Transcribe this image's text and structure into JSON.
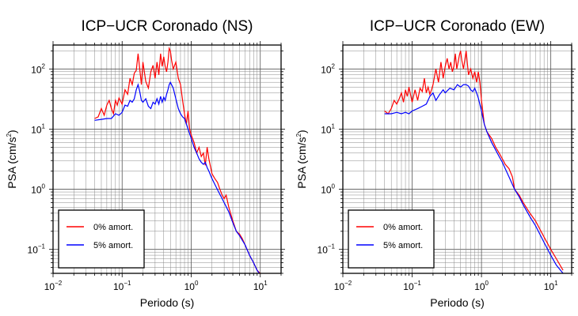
{
  "chart_data": [
    {
      "type": "line",
      "title": "ICP−UCR Coronado (NS)",
      "xlabel": "Periodo (s)",
      "ylabel": "PSA (cm/s",
      "ylabel_sup": "2",
      "ylabel_close": ")",
      "xscale": "log",
      "yscale": "log",
      "xlim": [
        0.01,
        20
      ],
      "ylim": [
        0.04,
        250
      ],
      "grid": true,
      "legend_position": "bottom-left",
      "x_ticks": [
        {
          "value": 0.01,
          "base": "10",
          "exp": "−2"
        },
        {
          "value": 0.1,
          "base": "10",
          "exp": "−1"
        },
        {
          "value": 1,
          "base": "10",
          "exp": "0"
        },
        {
          "value": 10,
          "base": "10",
          "exp": "1"
        }
      ],
      "y_ticks": [
        {
          "value": 0.1,
          "base": "10",
          "exp": "−1"
        },
        {
          "value": 1,
          "base": "10",
          "exp": "0"
        },
        {
          "value": 10,
          "base": "10",
          "exp": "1"
        },
        {
          "value": 100,
          "base": "10",
          "exp": "2"
        }
      ],
      "series": [
        {
          "name": "0% amort.",
          "color": "#ff0000",
          "x": [
            0.04,
            0.045,
            0.05,
            0.055,
            0.06,
            0.065,
            0.07,
            0.075,
            0.08,
            0.085,
            0.09,
            0.1,
            0.11,
            0.12,
            0.13,
            0.14,
            0.15,
            0.16,
            0.17,
            0.18,
            0.19,
            0.2,
            0.22,
            0.24,
            0.26,
            0.28,
            0.3,
            0.32,
            0.34,
            0.36,
            0.38,
            0.4,
            0.42,
            0.44,
            0.46,
            0.48,
            0.5,
            0.52,
            0.55,
            0.6,
            0.65,
            0.7,
            0.75,
            0.8,
            0.85,
            0.9,
            0.95,
            1.0,
            1.1,
            1.2,
            1.3,
            1.4,
            1.5,
            1.6,
            1.7,
            1.8,
            2.0,
            2.2,
            2.4,
            2.6,
            2.8,
            3.0,
            3.2,
            3.5,
            4.0,
            4.5,
            5.0,
            5.5,
            6.0,
            7.0,
            8.0,
            9.0,
            10.0
          ],
          "y": [
            15,
            16,
            22,
            17,
            25,
            30,
            22,
            18,
            30,
            25,
            33,
            26,
            45,
            38,
            70,
            55,
            85,
            95,
            180,
            100,
            55,
            130,
            62,
            48,
            90,
            115,
            70,
            130,
            80,
            180,
            110,
            160,
            110,
            90,
            130,
            220,
            200,
            140,
            100,
            130,
            70,
            55,
            30,
            18,
            12,
            20,
            10,
            8,
            6,
            4,
            5,
            3.5,
            4,
            2.5,
            5,
            3.2,
            1.8,
            1.5,
            1.3,
            1.0,
            0.8,
            0.7,
            0.8,
            0.5,
            0.3,
            0.2,
            0.18,
            0.15,
            0.12,
            0.08,
            0.06,
            0.045,
            0.04
          ]
        },
        {
          "name": "5% amort.",
          "color": "#0000ff",
          "x": [
            0.04,
            0.05,
            0.06,
            0.07,
            0.08,
            0.09,
            0.1,
            0.11,
            0.12,
            0.13,
            0.14,
            0.15,
            0.16,
            0.17,
            0.18,
            0.19,
            0.2,
            0.22,
            0.24,
            0.26,
            0.28,
            0.3,
            0.32,
            0.34,
            0.36,
            0.38,
            0.4,
            0.42,
            0.44,
            0.46,
            0.48,
            0.5,
            0.55,
            0.6,
            0.65,
            0.7,
            0.75,
            0.8,
            0.9,
            1.0,
            1.1,
            1.2,
            1.3,
            1.4,
            1.5,
            1.6,
            1.7,
            1.8,
            2.0,
            2.2,
            2.5,
            2.8,
            3.0,
            3.5,
            4.0,
            4.5,
            5.0,
            6.0,
            7.0,
            8.0,
            9.0,
            10.0
          ],
          "y": [
            14,
            14.5,
            15,
            15,
            18,
            17,
            19,
            25,
            24,
            30,
            28,
            32,
            45,
            55,
            42,
            30,
            28,
            32,
            24,
            22,
            28,
            26,
            32,
            26,
            35,
            28,
            34,
            30,
            38,
            45,
            55,
            60,
            48,
            32,
            22,
            18,
            16,
            15,
            10,
            7,
            5,
            4,
            3.2,
            2.8,
            2.6,
            2.8,
            2.3,
            2.0,
            1.5,
            1.2,
            0.9,
            0.7,
            0.6,
            0.42,
            0.28,
            0.2,
            0.17,
            0.12,
            0.08,
            0.06,
            0.045,
            0.038
          ]
        }
      ]
    },
    {
      "type": "line",
      "title": "ICP−UCR Coronado (EW)",
      "xlabel": "Periodo (s)",
      "ylabel": "PSA (cm/s",
      "ylabel_sup": "2",
      "ylabel_close": ")",
      "xscale": "log",
      "yscale": "log",
      "xlim": [
        0.01,
        20
      ],
      "ylim": [
        0.04,
        250
      ],
      "grid": true,
      "legend_position": "bottom-left",
      "x_ticks": [
        {
          "value": 0.01,
          "base": "10",
          "exp": "−2"
        },
        {
          "value": 0.1,
          "base": "10",
          "exp": "−1"
        },
        {
          "value": 1,
          "base": "10",
          "exp": "0"
        },
        {
          "value": 10,
          "base": "10",
          "exp": "1"
        }
      ],
      "y_ticks": [
        {
          "value": 0.1,
          "base": "10",
          "exp": "−1"
        },
        {
          "value": 1,
          "base": "10",
          "exp": "0"
        },
        {
          "value": 10,
          "base": "10",
          "exp": "1"
        },
        {
          "value": 100,
          "base": "10",
          "exp": "2"
        }
      ],
      "series": [
        {
          "name": "0% amort.",
          "color": "#ff0000",
          "x": [
            0.04,
            0.045,
            0.05,
            0.055,
            0.06,
            0.065,
            0.07,
            0.075,
            0.08,
            0.085,
            0.09,
            0.1,
            0.11,
            0.12,
            0.13,
            0.14,
            0.15,
            0.16,
            0.17,
            0.18,
            0.19,
            0.2,
            0.22,
            0.24,
            0.26,
            0.28,
            0.3,
            0.32,
            0.34,
            0.36,
            0.38,
            0.4,
            0.42,
            0.44,
            0.46,
            0.48,
            0.5,
            0.52,
            0.55,
            0.6,
            0.65,
            0.7,
            0.75,
            0.8,
            0.85,
            0.9,
            0.95,
            1.0,
            1.1,
            1.2,
            1.4,
            1.6,
            1.8,
            2.0,
            2.2,
            2.5,
            2.8,
            3.0,
            3.5,
            4.0,
            5.0,
            6.0,
            8.0,
            10.0,
            12.0,
            15.0
          ],
          "y": [
            20,
            18,
            22,
            30,
            26,
            32,
            40,
            28,
            45,
            35,
            50,
            28,
            45,
            30,
            48,
            42,
            70,
            40,
            50,
            38,
            45,
            55,
            100,
            60,
            130,
            70,
            110,
            150,
            100,
            130,
            90,
            110,
            180,
            100,
            130,
            170,
            200,
            140,
            100,
            200,
            80,
            100,
            70,
            90,
            60,
            90,
            60,
            30,
            12,
            9,
            7,
            5,
            4,
            3.2,
            2.6,
            2.2,
            1.6,
            1.0,
            0.8,
            0.6,
            0.4,
            0.3,
            0.16,
            0.1,
            0.07,
            0.045
          ]
        },
        {
          "name": "5% amort.",
          "color": "#0000ff",
          "x": [
            0.04,
            0.05,
            0.06,
            0.07,
            0.08,
            0.09,
            0.1,
            0.12,
            0.14,
            0.16,
            0.18,
            0.2,
            0.22,
            0.25,
            0.28,
            0.3,
            0.35,
            0.4,
            0.45,
            0.5,
            0.55,
            0.6,
            0.65,
            0.7,
            0.75,
            0.8,
            0.85,
            0.9,
            1.0,
            1.1,
            1.2,
            1.4,
            1.6,
            1.8,
            2.0,
            2.5,
            3.0,
            3.5,
            4.0,
            5.0,
            6.0,
            8.0,
            10.0,
            12.0,
            15.0
          ],
          "y": [
            18,
            18,
            19,
            18,
            19,
            18,
            20,
            22,
            24,
            26,
            35,
            40,
            30,
            38,
            45,
            40,
            48,
            45,
            55,
            50,
            55,
            55,
            52,
            45,
            42,
            48,
            40,
            33,
            20,
            12,
            9,
            6,
            4.5,
            3.5,
            2.8,
            1.6,
            1.0,
            0.75,
            0.55,
            0.35,
            0.25,
            0.13,
            0.08,
            0.055,
            0.04
          ]
        }
      ]
    }
  ]
}
